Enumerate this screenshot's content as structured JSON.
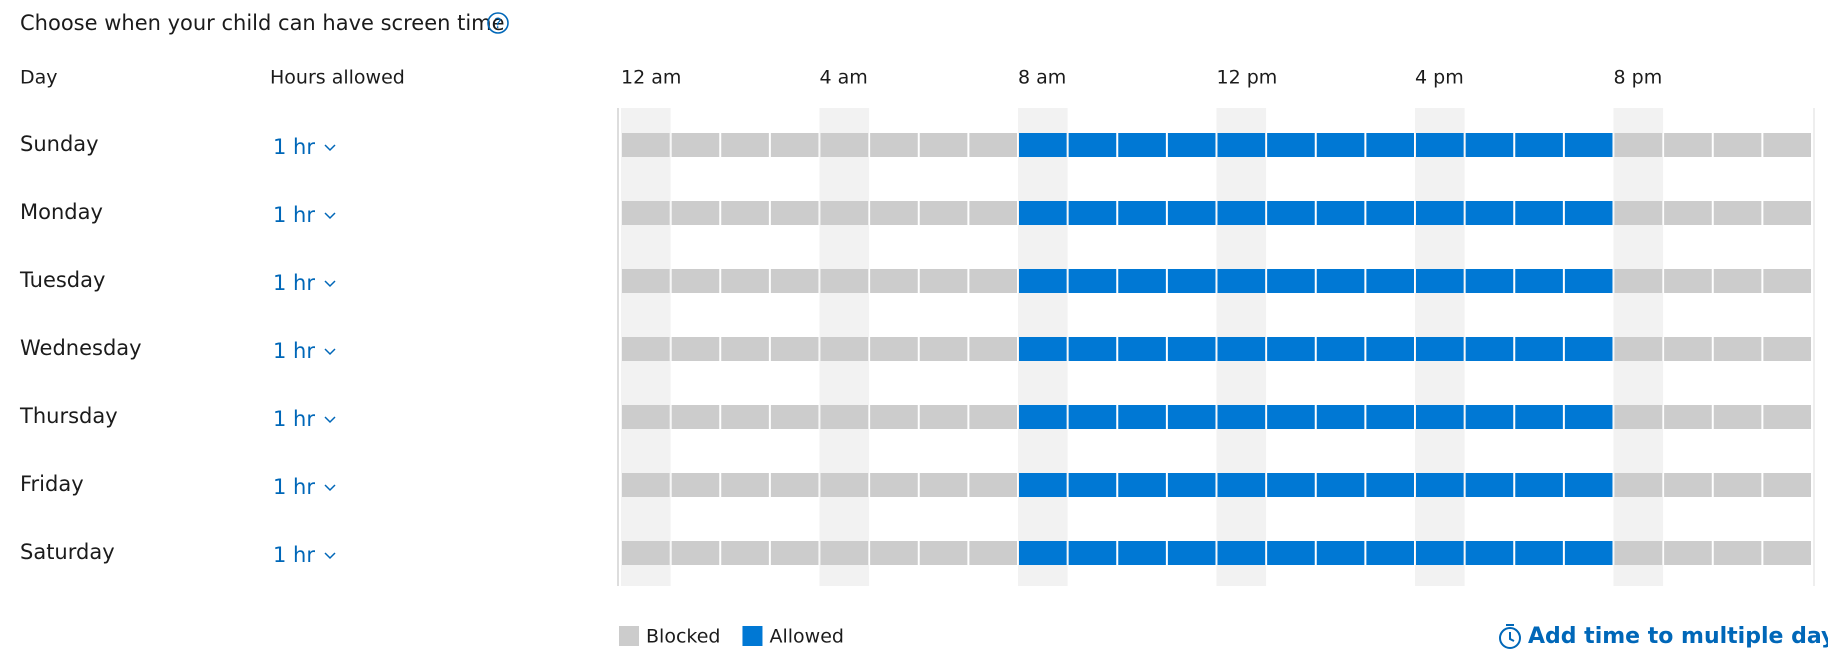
{
  "header": {
    "title": "Choose when your child can have screen time"
  },
  "columns": {
    "day": "Day",
    "hours": "Hours allowed"
  },
  "timeline": {
    "labels": [
      "12 am",
      "4 am",
      "8 am",
      "12 pm",
      "4 pm",
      "8 pm"
    ]
  },
  "legend": [
    {
      "label": "Blocked",
      "color": "#cccccc"
    },
    {
      "label": "Allowed",
      "color": "#0078d4"
    }
  ],
  "rows": [
    {
      "day": "Sunday",
      "hours": "1 hr",
      "cells": [
        0,
        0,
        0,
        0,
        0,
        0,
        0,
        0,
        1,
        1,
        1,
        1,
        1,
        1,
        1,
        1,
        1,
        1,
        1,
        1,
        0,
        0,
        0,
        0
      ]
    },
    {
      "day": "Monday",
      "hours": "1 hr",
      "cells": [
        0,
        0,
        0,
        0,
        0,
        0,
        0,
        0,
        1,
        1,
        1,
        1,
        1,
        1,
        1,
        1,
        1,
        1,
        1,
        1,
        0,
        0,
        0,
        0
      ]
    },
    {
      "day": "Tuesday",
      "hours": "1 hr",
      "cells": [
        0,
        0,
        0,
        0,
        0,
        0,
        0,
        0,
        1,
        1,
        1,
        1,
        1,
        1,
        1,
        1,
        1,
        1,
        1,
        1,
        0,
        0,
        0,
        0
      ]
    },
    {
      "day": "Wednesday",
      "hours": "1 hr",
      "cells": [
        0,
        0,
        0,
        0,
        0,
        0,
        0,
        0,
        1,
        1,
        1,
        1,
        1,
        1,
        1,
        1,
        1,
        1,
        1,
        1,
        0,
        0,
        0,
        0
      ]
    },
    {
      "day": "Thursday",
      "hours": "1 hr",
      "cells": [
        0,
        0,
        0,
        0,
        0,
        0,
        0,
        0,
        1,
        1,
        1,
        1,
        1,
        1,
        1,
        1,
        1,
        1,
        1,
        1,
        0,
        0,
        0,
        0
      ]
    },
    {
      "day": "Friday",
      "hours": "1 hr",
      "cells": [
        0,
        0,
        0,
        0,
        0,
        0,
        0,
        0,
        1,
        1,
        1,
        1,
        1,
        1,
        1,
        1,
        1,
        1,
        1,
        1,
        0,
        0,
        0,
        0
      ]
    },
    {
      "day": "Saturday",
      "hours": "1 hr",
      "cells": [
        0,
        0,
        0,
        0,
        0,
        0,
        0,
        0,
        1,
        1,
        1,
        1,
        1,
        1,
        1,
        1,
        1,
        1,
        1,
        1,
        0,
        0,
        0,
        0
      ]
    }
  ],
  "link": "Add time to multiple days"
}
